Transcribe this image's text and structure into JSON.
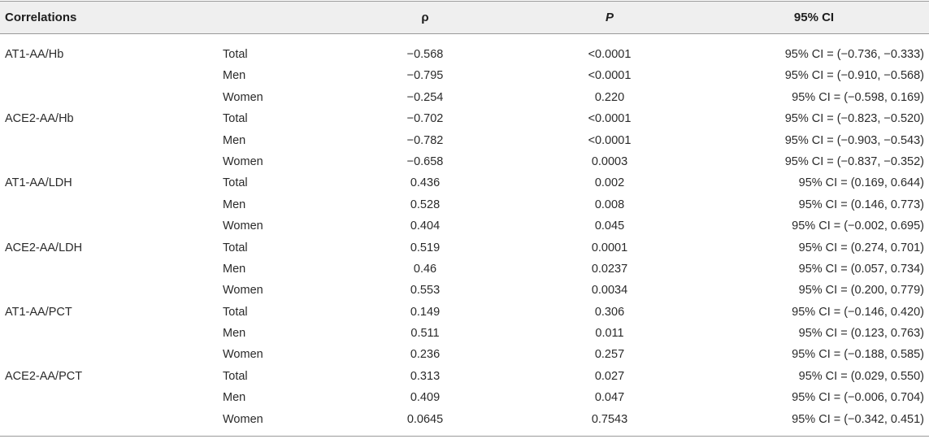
{
  "header": {
    "correlations": "Correlations",
    "rho": "ρ",
    "p": "P",
    "ci": "95% CI"
  },
  "rows": [
    {
      "correlation": "AT1-AA/Hb",
      "group": "Total",
      "rho": "−0.568",
      "p": "<0.0001",
      "ci": "95% CI = (−0.736, −0.333)"
    },
    {
      "correlation": "",
      "group": "Men",
      "rho": "−0.795",
      "p": "<0.0001",
      "ci": "95% CI = (−0.910, −0.568)"
    },
    {
      "correlation": "",
      "group": "Women",
      "rho": "−0.254",
      "p": "0.220",
      "ci": "95% CI = (−0.598, 0.169)"
    },
    {
      "correlation": "ACE2-AA/Hb",
      "group": "Total",
      "rho": "−0.702",
      "p": "<0.0001",
      "ci": "95% CI = (−0.823, −0.520)"
    },
    {
      "correlation": "",
      "group": "Men",
      "rho": "−0.782",
      "p": "<0.0001",
      "ci": "95% CI = (−0.903, −0.543)"
    },
    {
      "correlation": "",
      "group": "Women",
      "rho": "−0.658",
      "p": "0.0003",
      "ci": "95% CI = (−0.837, −0.352)"
    },
    {
      "correlation": "AT1-AA/LDH",
      "group": "Total",
      "rho": "0.436",
      "p": "0.002",
      "ci": "95% CI = (0.169, 0.644)"
    },
    {
      "correlation": "",
      "group": "Men",
      "rho": "0.528",
      "p": "0.008",
      "ci": "95% CI = (0.146, 0.773)"
    },
    {
      "correlation": "",
      "group": "Women",
      "rho": "0.404",
      "p": "0.045",
      "ci": "95% CI = (−0.002, 0.695)"
    },
    {
      "correlation": "ACE2-AA/LDH",
      "group": "Total",
      "rho": "0.519",
      "p": "0.0001",
      "ci": "95% CI = (0.274, 0.701)"
    },
    {
      "correlation": "",
      "group": "Men",
      "rho": "0.46",
      "p": "0.0237",
      "ci": "95% CI = (0.057, 0.734)"
    },
    {
      "correlation": "",
      "group": "Women",
      "rho": "0.553",
      "p": "0.0034",
      "ci": "95% CI = (0.200, 0.779)"
    },
    {
      "correlation": "AT1-AA/PCT",
      "group": "Total",
      "rho": "0.149",
      "p": "0.306",
      "ci": "95% CI = (−0.146, 0.420)"
    },
    {
      "correlation": "",
      "group": "Men",
      "rho": "0.511",
      "p": "0.011",
      "ci": "95% CI = (0.123, 0.763)"
    },
    {
      "correlation": "",
      "group": "Women",
      "rho": "0.236",
      "p": "0.257",
      "ci": "95% CI = (−0.188, 0.585)"
    },
    {
      "correlation": "ACE2-AA/PCT",
      "group": "Total",
      "rho": "0.313",
      "p": "0.027",
      "ci": "95% CI = (0.029, 0.550)"
    },
    {
      "correlation": "",
      "group": "Men",
      "rho": "0.409",
      "p": "0.047",
      "ci": "95% CI = (−0.006, 0.704)"
    },
    {
      "correlation": "",
      "group": "Women",
      "rho": "0.0645",
      "p": "0.7543",
      "ci": "95% CI = (−0.342, 0.451)"
    }
  ]
}
